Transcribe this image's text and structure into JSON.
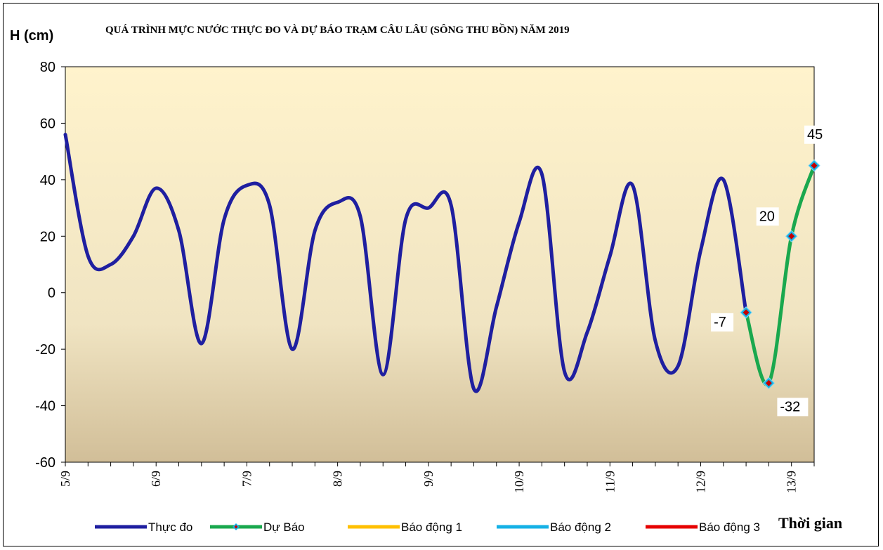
{
  "chart_data": {
    "type": "line",
    "title": "QUÁ TRÌNH MỰC NƯỚC THỰC ĐO VÀ DỰ BÁO TRẠM CÂU LÂU (SÔNG THU BỒN) NĂM  2019",
    "ylabel": "H (cm)",
    "xlabel": "Thời gian",
    "ylim": [
      -60,
      80
    ],
    "yticks": [
      "80",
      "60",
      "40",
      "20",
      "0",
      "-20",
      "-40",
      "-60"
    ],
    "categories": [
      "5/9",
      "6/9",
      "7/9",
      "8/9",
      "9/9",
      "10/9",
      "11/9",
      "12/9",
      "13/9"
    ],
    "x_range": [
      0,
      33
    ],
    "grid": false,
    "legend_position": "bottom",
    "series": [
      {
        "name": "Thực đo",
        "color": "#1f1fa0",
        "x": [
          0,
          1,
          2,
          3,
          4,
          5,
          6,
          7,
          8,
          9,
          10,
          11,
          12,
          13,
          14,
          15,
          16,
          17,
          18,
          19,
          20,
          21,
          22,
          23,
          24,
          25,
          26,
          27,
          28,
          29,
          30
        ],
        "y": [
          56,
          13,
          10,
          20,
          37,
          22,
          -18,
          26,
          38,
          31,
          -20,
          22,
          32,
          27,
          -29,
          26,
          30,
          31,
          -34,
          -5,
          25,
          42,
          -28,
          -14,
          13,
          38,
          -17,
          -26,
          15,
          40,
          -7
        ]
      },
      {
        "name": "Dự Báo",
        "color": "#1aa84e",
        "x": [
          30,
          31,
          32,
          33
        ],
        "y": [
          -7,
          -32,
          20,
          45
        ],
        "point_labels": [
          "-7",
          "-32",
          "20",
          "45"
        ]
      },
      {
        "name": "Báo động 1",
        "color": "#ffc000"
      },
      {
        "name": "Báo động 2",
        "color": "#16b1e6"
      },
      {
        "name": "Báo động 3",
        "color": "#e60000"
      }
    ]
  }
}
